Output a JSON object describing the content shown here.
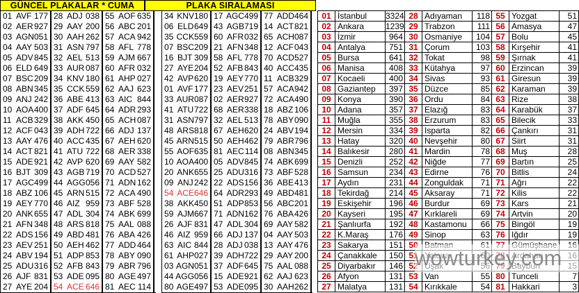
{
  "current_plates": {
    "title": "GÜNCEL PLAKALAR * CUMA",
    "highlights": [
      [
        1,
        26
      ]
    ],
    "columns": [
      [
        "01 AVF 177",
        "02 AER 927",
        "03 AGN 051",
        "04 AAY 503",
        "05 ADV 845",
        "06 ELD 649",
        "07 BSC 209",
        "08 ABN 345",
        "09 ANJ 242",
        "10 AOA 400",
        "11 ACB 329",
        "12 ACF 043",
        "13 AAY 476",
        "14 ACT 821",
        "15 ADE 921",
        "16 BJT 309",
        "17 AGC 499",
        "18 ABZ 106",
        "19 AEY 770",
        "20 ANK 655",
        "21 AFN 348",
        "22 ADS 156",
        "23 AEV 251",
        "24 ABV 194",
        "25 ADU 316",
        "26 AJF 831",
        "27 AYE 204"
      ],
      [
        "28 ADJ 038",
        "29 AAY 200",
        "30 AAH 262",
        "31 ASN 797",
        "32 AEL 513",
        "33 AUR 087",
        "34 KNV 180",
        "35 CCK 559",
        "36 ABE 413",
        "37 ADF 645",
        "38 AKK 450",
        "39 ADH 722",
        "40 ACC 435",
        "41 ATU 722",
        "42 AVP 620",
        "43 AGB 719",
        "44 AGG 056",
        "45 ARN 515",
        "46 AIZ 959",
        "47 ADL 304",
        "48 ARS 818",
        "49 ABD 481",
        "50 AEH 462",
        "51 ADP 853",
        "52 AFB 843",
        "53 ADE 095",
        "54 ACE 646"
      ],
      [
        "55 AOF 635",
        "56 ABC 201",
        "57 ACA 942",
        "58 AFL 778",
        "59 AJM 667",
        "60 AFR 032",
        "61 AHP 027",
        "62 AAJ 623",
        "63 AIC 844",
        "64 ADR 293",
        "65 ACH 087",
        "66 ADJ 137",
        "67 AEH 620",
        "68 AER 338",
        "69 AAY 582",
        "70 ACD 527",
        "71 ADN 162",
        "72 ACA 490",
        "73 ABF 528",
        "74 ABK 699",
        "75 AAL 088",
        "76 ABA 426",
        "77 ADD 464",
        "78 ABY 090",
        "79 ABR 796",
        "80 AGE 497",
        "81 AEC 114"
      ]
    ]
  },
  "sorted_plates": {
    "title": "PLAKA SIRALAMASI",
    "highlights": [
      [
        0,
        17
      ]
    ],
    "columns": [
      [
        "34 KNV 180",
        "06 ELD 649",
        "35 CCK 559",
        "07 BSC 209",
        "16 BJT 309",
        "27 AYE 204",
        "42 AVP 620",
        "01 AVF 177",
        "33 AUR 087",
        "41 ATU 722",
        "31 ASN 797",
        "48 ARS 818",
        "45 ARN 515",
        "55 AOF 635",
        "10 AOA 400",
        "20 ANK 655",
        "09 ANJ 242",
        "54 ACE 646",
        "38 AKK 450",
        "59 AJM 667",
        "26 AJF 831",
        "46 AIZ 959",
        "63 AIC 844",
        "61 AHP 027",
        "03 AGN 051",
        "44 AGG 056",
        "80 AGE 497"
      ],
      [
        "17 AGC 499",
        "43 AGB 719",
        "60 AFR 032",
        "21 AFN 348",
        "58 AFL 778",
        "52 AFB 843",
        "19 AEY 770",
        "23 AEV 251",
        "02 AER 927",
        "68 AER 338",
        "32 AEL 513",
        "67 AEH 620",
        "50 AEH 462",
        "81 AEC 114",
        "05 ADV 845",
        "25 ADU 316",
        "22 ADS 156",
        "64 ADR 293",
        "51 ADP 853",
        "71 ADN 162",
        "47 ADL 304",
        "66 ADJ 137",
        "28 ADJ 038",
        "39 ADH 722",
        "37 ADF 645",
        "15 ADE 921",
        "53 ADE 095"
      ],
      [
        "77 ADD 464",
        "14 ACT 821",
        "65 ACH 087",
        "12 ACF 043",
        "70 ACD 527",
        "40 ACC 435",
        "11 ACB 329",
        "57 ACA 942",
        "72 ACA 490",
        "18 ABZ 106",
        "78 ABY 090",
        "24 ABV 194",
        "79 ABR 796",
        "08 ABN 345",
        "74 ABK 699",
        "73 ABF 528",
        "36 ABE 413",
        "49 ABD 481",
        "56 ABC 201",
        "76 ABA 426",
        "69 AAY 582",
        "04 AAY 503",
        "13 AAY 476",
        "29 AAY 200",
        "75 AAL 088",
        "62 AAJ 623",
        "30 AAH 262"
      ]
    ]
  },
  "province_ranking": {
    "columns": [
      [
        [
          "01",
          "İstanbul",
          "3324"
        ],
        [
          "02",
          "Ankara",
          "1239"
        ],
        [
          "03",
          "İzmir",
          "964"
        ],
        [
          "04",
          "Antalya",
          "751"
        ],
        [
          "05",
          "Bursa",
          "641"
        ],
        [
          "06",
          "Manisa",
          "408"
        ],
        [
          "07",
          "Kocaeli",
          "400"
        ],
        [
          "08",
          "Gaziantep",
          "397"
        ],
        [
          "09",
          "Konya",
          "390"
        ],
        [
          "10",
          "Adana",
          "357"
        ],
        [
          "11",
          "Muğla",
          "355"
        ],
        [
          "12",
          "Mersin",
          "334"
        ],
        [
          "13",
          "Hatay",
          "320"
        ],
        [
          "14",
          "Balıkesir",
          "280"
        ],
        [
          "15",
          "Denizli",
          "252"
        ],
        [
          "16",
          "Samsun",
          "234"
        ],
        [
          "17",
          "Aydın",
          "231"
        ],
        [
          "18",
          "Tekirdağ",
          "214"
        ],
        [
          "19",
          "Eskişehir",
          "196"
        ],
        [
          "20",
          "Kayseri",
          "195"
        ],
        [
          "21",
          "Şanlıurfa",
          "192"
        ],
        [
          "22",
          "K.Maraş",
          "176"
        ],
        [
          "23",
          "Sakarya",
          "151"
        ],
        [
          "24",
          "Çanakkale",
          "150"
        ],
        [
          "25",
          "Diyarbakır",
          "146"
        ],
        [
          "26",
          "Afyon",
          "131"
        ],
        [
          "27",
          "Malatya",
          "131"
        ]
      ],
      [
        [
          "28",
          "Adıyaman",
          "118"
        ],
        [
          "29",
          "Trabzon",
          "111"
        ],
        [
          "30",
          "Osmaniye",
          "104"
        ],
        [
          "31",
          "Çorum",
          "103"
        ],
        [
          "32",
          "Tokat",
          "98"
        ],
        [
          "33",
          "Kütahya",
          "97"
        ],
        [
          "34",
          "Sivas",
          "93"
        ],
        [
          "35",
          "Düzce",
          "85"
        ],
        [
          "36",
          "Ordu",
          "84"
        ],
        [
          "37",
          "Elazığ",
          "83"
        ],
        [
          "38",
          "Erzurum",
          "83"
        ],
        [
          "39",
          "Isparta",
          "82"
        ],
        [
          "40",
          "Nevşehir",
          "80"
        ],
        [
          "41",
          "Mardin",
          "78"
        ],
        [
          "42",
          "Niğde",
          "77"
        ],
        [
          "43",
          "Edirne",
          "76"
        ],
        [
          "44",
          "Zonguldak",
          "71"
        ],
        [
          "45",
          "Aksaray",
          "71"
        ],
        [
          "46",
          "Burdur",
          "69"
        ],
        [
          "47",
          "Kırklareli",
          "69"
        ],
        [
          "48",
          "Kastamonu",
          "66"
        ],
        [
          "49",
          "Sinop",
          "63"
        ],
        [
          "50",
          "Batman",
          "61"
        ],
        [
          "51",
          "Yalova",
          "60"
        ],
        [
          "52",
          "Uşak",
          "56"
        ],
        [
          "53",
          "Van",
          "55"
        ],
        [
          "54",
          "Kırıkkale",
          "54"
        ]
      ],
      [
        [
          "55",
          "Yozgat",
          "51"
        ],
        [
          "56",
          "Amasya",
          "47"
        ],
        [
          "57",
          "Bolu",
          "45"
        ],
        [
          "58",
          "Kırşehir",
          "41"
        ],
        [
          "59",
          "Şırnak",
          "41"
        ],
        [
          "60",
          "Erzincan",
          "39"
        ],
        [
          "61",
          "Giresun",
          "39"
        ],
        [
          "62",
          "Karaman",
          "39"
        ],
        [
          "63",
          "Rize",
          "38"
        ],
        [
          "64",
          "Karabük",
          "37"
        ],
        [
          "65",
          "Bilecik",
          "33"
        ],
        [
          "66",
          "Çankırı",
          "31"
        ],
        [
          "67",
          "Siirt",
          "31"
        ],
        [
          "68",
          "Muş",
          "28"
        ],
        [
          "69",
          "Bartın",
          "25"
        ],
        [
          "70",
          "Bitlis",
          "24"
        ],
        [
          "71",
          "Ağrı",
          "22"
        ],
        [
          "72",
          "Kilis",
          "22"
        ],
        [
          "73",
          "Kars",
          "21"
        ],
        [
          "74",
          "Artvin",
          "20"
        ],
        [
          "75",
          "Bingöl",
          "19"
        ],
        [
          "76",
          "Iğdır",
          "19"
        ],
        [
          "77",
          "Gümüşhane",
          "16"
        ],
        [
          "78",
          "Ardahan",
          "16"
        ],
        [
          "79",
          "Bayburt",
          "15"
        ],
        [
          "80",
          "Tunceli",
          "7"
        ],
        [
          "81",
          "Hakkari",
          "3"
        ]
      ]
    ]
  },
  "watermark": {
    "text": "wowturkey.com"
  },
  "colors": {
    "header_bg": "#ffff00",
    "highlight_red": "#e03131",
    "rank_red": "#c00000",
    "watermark_gray": "#7d7d7d"
  }
}
